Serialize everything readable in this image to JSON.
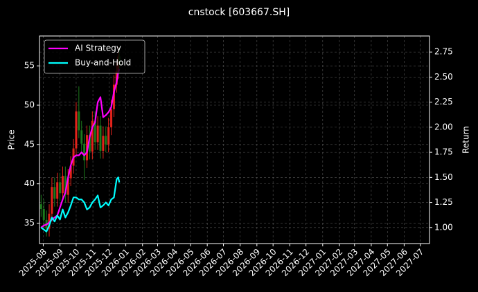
{
  "chart_data": {
    "type": "candlestick",
    "title": "cnstock [603667.SH]",
    "ylabel": "Price",
    "y2label": "Return",
    "x": [
      "2025-07-28",
      "2025-08-02",
      "2025-08-07",
      "2025-08-12",
      "2025-08-17",
      "2025-08-22",
      "2025-08-27",
      "2025-09-01",
      "2025-09-06",
      "2025-09-11",
      "2025-09-16",
      "2025-09-21",
      "2025-09-26",
      "2025-10-01",
      "2025-10-06",
      "2025-10-11",
      "2025-10-16",
      "2025-10-21",
      "2025-10-26",
      "2025-10-31",
      "2025-11-05",
      "2025-11-10",
      "2025-11-15",
      "2025-11-20",
      "2025-11-25",
      "2025-11-30",
      "2025-12-05",
      "2025-12-10",
      "2025-12-15",
      "2025-12-18",
      "2025-12-20"
    ],
    "open": [
      37.4,
      36.8,
      35.4,
      34.3,
      36.2,
      39.6,
      38.1,
      40.2,
      38.8,
      41.0,
      38.6,
      40.7,
      42.3,
      44.5,
      49.2,
      46.8,
      45.1,
      43.0,
      46.2,
      44.1,
      48.0,
      45.3,
      47.4,
      44.2,
      46.1,
      45.0,
      47.2,
      49.5,
      52.6,
      54.3,
      56.2
    ],
    "high": [
      38.6,
      38.0,
      36.6,
      37.4,
      40.8,
      40.8,
      41.4,
      41.4,
      42.2,
      42.2,
      41.9,
      43.5,
      45.7,
      50.4,
      52.4,
      48.0,
      46.3,
      47.4,
      47.4,
      49.2,
      49.2,
      48.6,
      48.6,
      47.3,
      47.3,
      48.4,
      50.7,
      53.8,
      55.5,
      57.4,
      57.4
    ],
    "low": [
      35.8,
      34.4,
      33.3,
      33.3,
      35.2,
      37.1,
      37.1,
      37.8,
      37.8,
      37.6,
      37.6,
      39.7,
      41.3,
      43.5,
      45.8,
      44.1,
      40.5,
      42.0,
      43.1,
      43.1,
      44.3,
      44.3,
      43.2,
      43.2,
      44.0,
      44.0,
      46.2,
      48.5,
      51.6,
      53.3,
      54.1
    ],
    "close": [
      36.8,
      35.4,
      34.3,
      36.2,
      39.6,
      38.1,
      40.2,
      38.8,
      41.0,
      38.6,
      40.7,
      42.3,
      44.5,
      49.2,
      46.8,
      45.1,
      43.0,
      46.2,
      44.1,
      48.0,
      45.3,
      47.4,
      44.2,
      46.1,
      45.0,
      47.2,
      49.5,
      52.6,
      54.3,
      56.2,
      55.1
    ],
    "up_color": "#e3231b",
    "down_color": "#1c7a1c",
    "series": [
      {
        "name": "AI Strategy",
        "color": "#ff00ff",
        "axis": "y2",
        "values": [
          1.0,
          1.02,
          1.03,
          1.05,
          1.08,
          1.1,
          1.12,
          1.2,
          1.28,
          1.35,
          1.5,
          1.62,
          1.7,
          1.72,
          1.72,
          1.75,
          1.72,
          1.75,
          1.9,
          2.0,
          2.05,
          2.25,
          2.3,
          2.1,
          2.12,
          2.15,
          2.2,
          2.35,
          2.45,
          2.55,
          2.58
        ]
      },
      {
        "name": "Buy-and-Hold",
        "color": "#00ffff",
        "axis": "y2",
        "values": [
          1.0,
          0.98,
          0.96,
          1.02,
          1.1,
          1.06,
          1.12,
          1.08,
          1.18,
          1.1,
          1.15,
          1.22,
          1.3,
          1.3,
          1.28,
          1.28,
          1.25,
          1.18,
          1.2,
          1.25,
          1.28,
          1.32,
          1.2,
          1.22,
          1.25,
          1.22,
          1.28,
          1.3,
          1.48,
          1.5,
          1.45
        ]
      }
    ],
    "xlim": [
      "2025-07-25",
      "2027-07-18"
    ],
    "xticks": [
      {
        "value": "2025-08-01",
        "label": "2025-08"
      },
      {
        "value": "2025-09-01",
        "label": "2025-09"
      },
      {
        "value": "2025-10-01",
        "label": "2025-10"
      },
      {
        "value": "2025-11-01",
        "label": "2025-11"
      },
      {
        "value": "2025-12-01",
        "label": "2025-12"
      },
      {
        "value": "2026-01-01",
        "label": "2026-01"
      },
      {
        "value": "2026-02-01",
        "label": "2026-02"
      },
      {
        "value": "2026-03-01",
        "label": "2026-03"
      },
      {
        "value": "2026-04-01",
        "label": "2026-04"
      },
      {
        "value": "2026-05-01",
        "label": "2026-05"
      },
      {
        "value": "2026-06-01",
        "label": "2026-06"
      },
      {
        "value": "2026-07-01",
        "label": "2026-07"
      },
      {
        "value": "2026-08-01",
        "label": "2026-08"
      },
      {
        "value": "2026-09-01",
        "label": "2026-09"
      },
      {
        "value": "2026-10-01",
        "label": "2026-10"
      },
      {
        "value": "2026-11-01",
        "label": "2026-11"
      },
      {
        "value": "2026-12-01",
        "label": "2026-12"
      },
      {
        "value": "2027-01-01",
        "label": "2027-01"
      },
      {
        "value": "2027-02-01",
        "label": "2027-02"
      },
      {
        "value": "2027-03-01",
        "label": "2027-03"
      },
      {
        "value": "2027-04-01",
        "label": "2027-04"
      },
      {
        "value": "2027-05-01",
        "label": "2027-05"
      },
      {
        "value": "2027-06-01",
        "label": "2027-06"
      },
      {
        "value": "2027-07-01",
        "label": "2027-07"
      }
    ],
    "ylim": [
      32.4,
      58.8
    ],
    "yticks": [
      35,
      40,
      45,
      50,
      55
    ],
    "y2lim": [
      0.84,
      2.91
    ],
    "y2ticks": [
      {
        "value": 1,
        "label": "1.00"
      },
      {
        "value": 1.25,
        "label": "1.25"
      },
      {
        "value": 1.5,
        "label": "1.50"
      },
      {
        "value": 1.75,
        "label": "1.75"
      },
      {
        "value": 2,
        "label": "2.00"
      },
      {
        "value": 2.25,
        "label": "2.25"
      },
      {
        "value": 2.5,
        "label": "2.50"
      },
      {
        "value": 2.75,
        "label": "2.75"
      }
    ],
    "grid": true,
    "legend": "upper left"
  }
}
